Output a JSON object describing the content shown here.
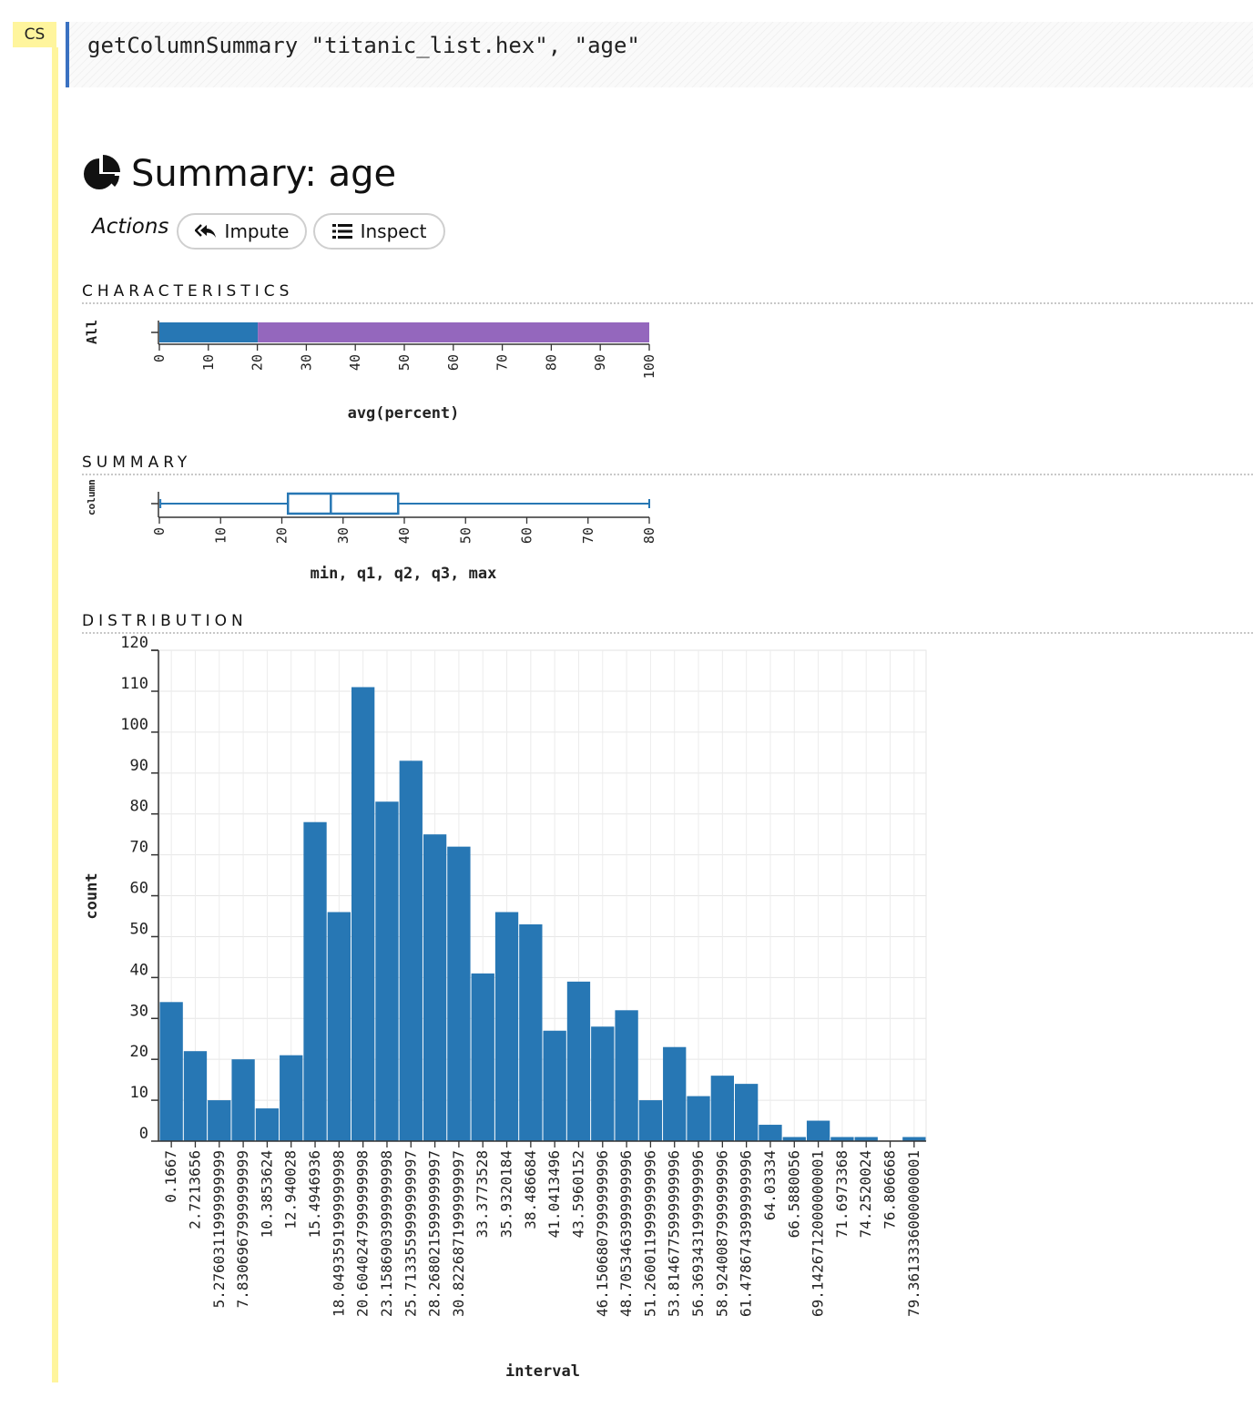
{
  "cell": {
    "tag": "CS",
    "code": "getColumnSummary \"titanic_list.hex\", \"age\""
  },
  "header": {
    "icon": "pie-chart-icon",
    "title": "Summary: age"
  },
  "actions": {
    "label": "Actions",
    "impute": {
      "label": "Impute",
      "icon": "reply-all-icon"
    },
    "inspect": {
      "label": "Inspect",
      "icon": "list-icon"
    }
  },
  "sections": {
    "characteristics": "CHARACTERISTICS",
    "summary": "SUMMARY",
    "distribution": "DISTRIBUTION"
  },
  "colors": {
    "blue": "#2777b4",
    "purple": "#9467bd",
    "accent": "#3a71c1",
    "gutter": "#fff59d"
  },
  "chart_data": [
    {
      "type": "bar",
      "orientation": "horizontal-stacked",
      "categories": [
        "All"
      ],
      "series": [
        {
          "values": [
            20.1
          ],
          "color": "#2777b4"
        },
        {
          "values": [
            79.9
          ],
          "color": "#9467bd"
        }
      ],
      "xlabel": "avg(percent)",
      "xlim": [
        0,
        100
      ],
      "xticks": [
        "0",
        "10",
        "20",
        "30",
        "40",
        "50",
        "60",
        "70",
        "80",
        "90",
        "100"
      ]
    },
    {
      "type": "boxplot",
      "category": "column",
      "min": 0.1667,
      "q1": 21,
      "q2": 28,
      "q3": 39,
      "max": 80,
      "xlabel": "min, q1, q2, q3, max",
      "xlim": [
        0,
        80
      ],
      "xticks": [
        "0",
        "10",
        "20",
        "30",
        "40",
        "50",
        "60",
        "70",
        "80"
      ]
    },
    {
      "type": "bar",
      "xlabel": "interval",
      "ylabel": "count",
      "ylim": [
        0,
        120
      ],
      "yticks": [
        "0",
        "10",
        "20",
        "30",
        "40",
        "50",
        "60",
        "70",
        "80",
        "90",
        "100",
        "110",
        "120"
      ],
      "categories": [
        "0.1667",
        "2.7213656",
        "5.2760311999999999",
        "7.8306967999999999",
        "10.3853624",
        "12.940028",
        "15.4946936",
        "18.0493591999999998",
        "20.6040247999999998",
        "23.1586903999999998",
        "25.7133559999999997",
        "28.2680215999999997",
        "30.8226871999999997",
        "33.3773528",
        "35.9320184",
        "38.486684",
        "41.0413496",
        "43.5960152",
        "46.1506807999999996",
        "48.7053463999999996",
        "51.2600119999999996",
        "53.8146775999999996",
        "56.3693431999999996",
        "58.9240087999999996",
        "61.4786743999999996",
        "64.03334",
        "66.5880056",
        "69.1426712000000001",
        "71.6973368",
        "74.2520024",
        "76.806668",
        "79.3613336000000001"
      ],
      "tick_labels": [
        "0.1667",
        "2.7213656",
        "5.2760311999999999",
        "7.8306967999999999",
        "10.3853624",
        "12.940028",
        "15.4946936",
        "18.0493591999999998",
        "20.6040247999999998",
        "23.1586903999999998",
        "25.7133559999999997",
        "28.2680215999999997",
        "30.8226871999999997",
        "33.3773528",
        "35.9320184",
        "38.486684",
        "41.0413496",
        "43.5960152",
        "46.1506807999999996",
        "48.7053463999999996",
        "51.2600119999999996",
        "53.8146775999999996",
        "56.3693431999999996",
        "58.9240087999999996",
        "61.4786743999999996",
        "64.03334",
        "66.5880056",
        "69.1426712000000001",
        "71.6973368",
        "74.2520024",
        "76.806668",
        "79.3613336000000001"
      ],
      "values": [
        34,
        22,
        10,
        20,
        8,
        21,
        78,
        56,
        111,
        83,
        93,
        75,
        72,
        41,
        56,
        53,
        27,
        39,
        28,
        32,
        10,
        23,
        11,
        16,
        14,
        4,
        1,
        5,
        1,
        1,
        0,
        1
      ],
      "grid": true
    }
  ]
}
